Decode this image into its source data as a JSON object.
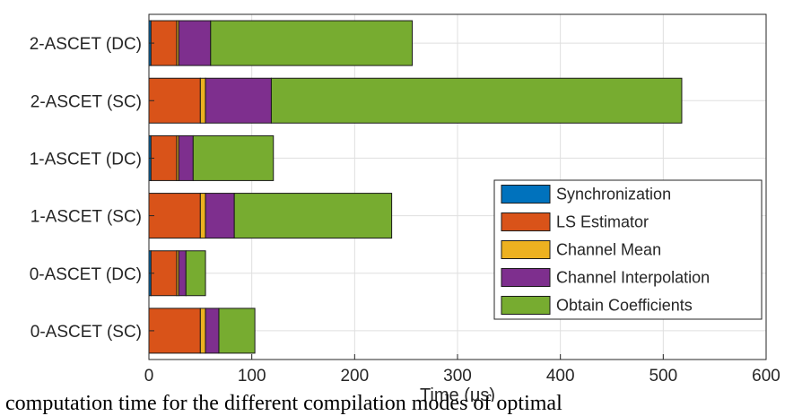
{
  "chart_data": {
    "type": "bar",
    "orientation": "horizontal",
    "stacked": true,
    "categories": [
      "2-ASCET (DC)",
      "2-ASCET (SC)",
      "1-ASCET (DC)",
      "1-ASCET (SC)",
      "0-ASCET (DC)",
      "0-ASCET (SC)"
    ],
    "series": [
      {
        "name": "Synchronization",
        "color": "#0072BD",
        "values": [
          2,
          0,
          2,
          0,
          2,
          0
        ]
      },
      {
        "name": "LS Estimator",
        "color": "#D95319",
        "values": [
          25,
          50,
          25,
          50,
          25,
          50
        ]
      },
      {
        "name": "Channel Mean",
        "color": "#EDB120",
        "values": [
          2,
          5,
          2,
          5,
          2,
          5
        ]
      },
      {
        "name": "Channel Interpolation",
        "color": "#7E2F8E",
        "values": [
          31,
          64,
          14,
          28,
          7,
          13
        ]
      },
      {
        "name": "Obtain Coefficients",
        "color": "#77AC30",
        "values": [
          196,
          399,
          78,
          153,
          19,
          35
        ]
      }
    ],
    "xlabel": "Time (μs)",
    "xlim": [
      0,
      600
    ],
    "xticks": [
      "0",
      "100",
      "200",
      "300",
      "400",
      "500",
      "600"
    ],
    "grid": true,
    "legend_position": "bottom-right"
  },
  "caption": "computation time for the different compilation modes of optimal"
}
